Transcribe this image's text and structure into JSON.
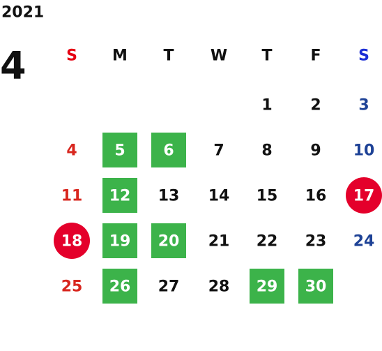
{
  "year": "2021",
  "month": "4",
  "weekdays": [
    {
      "label": "S",
      "color": "#e60012"
    },
    {
      "label": "M",
      "color": "#111111"
    },
    {
      "label": "T",
      "color": "#111111"
    },
    {
      "label": "W",
      "color": "#111111"
    },
    {
      "label": "T",
      "color": "#111111"
    },
    {
      "label": "F",
      "color": "#111111"
    },
    {
      "label": "S",
      "color": "#1d2fd6"
    }
  ],
  "day_colors": [
    "#d8261e",
    "#111111",
    "#111111",
    "#111111",
    "#111111",
    "#111111",
    "#1e4296"
  ],
  "weeks": [
    [
      null,
      null,
      null,
      null,
      {
        "day": 1
      },
      {
        "day": 2
      },
      {
        "day": 3
      }
    ],
    [
      {
        "day": 4
      },
      {
        "day": 5,
        "mark": "square",
        "fill": "#3cb34a"
      },
      {
        "day": 6,
        "mark": "square",
        "fill": "#3cb34a"
      },
      {
        "day": 7
      },
      {
        "day": 8
      },
      {
        "day": 9
      },
      {
        "day": 10
      }
    ],
    [
      {
        "day": 11
      },
      {
        "day": 12,
        "mark": "square",
        "fill": "#3cb34a"
      },
      {
        "day": 13
      },
      {
        "day": 14
      },
      {
        "day": 15
      },
      {
        "day": 16
      },
      {
        "day": 17,
        "mark": "circle",
        "fill": "#e4002b"
      }
    ],
    [
      {
        "day": 18,
        "mark": "circle",
        "fill": "#e4002b"
      },
      {
        "day": 19,
        "mark": "square",
        "fill": "#3cb34a"
      },
      {
        "day": 20,
        "mark": "square",
        "fill": "#3cb34a"
      },
      {
        "day": 21
      },
      {
        "day": 22
      },
      {
        "day": 23
      },
      {
        "day": 24
      }
    ],
    [
      {
        "day": 25
      },
      {
        "day": 26,
        "mark": "square",
        "fill": "#3cb34a"
      },
      {
        "day": 27
      },
      {
        "day": 28
      },
      {
        "day": 29,
        "mark": "square",
        "fill": "#3cb34a"
      },
      {
        "day": 30,
        "mark": "square",
        "fill": "#3cb34a"
      },
      null
    ]
  ]
}
